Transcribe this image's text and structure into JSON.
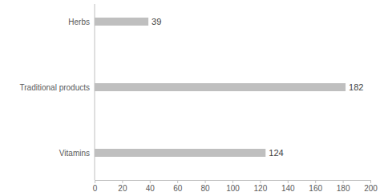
{
  "chart_data": {
    "type": "bar",
    "orientation": "horizontal",
    "categories": [
      "Herbs",
      "Traditional products",
      "Vitamins"
    ],
    "values": [
      39,
      182,
      124
    ],
    "color": "#bfbfbf",
    "xlim": [
      0,
      200
    ],
    "xticks": [
      0,
      20,
      40,
      60,
      80,
      100,
      120,
      140,
      160,
      180,
      200
    ],
    "grid": false,
    "data_labels": true
  }
}
